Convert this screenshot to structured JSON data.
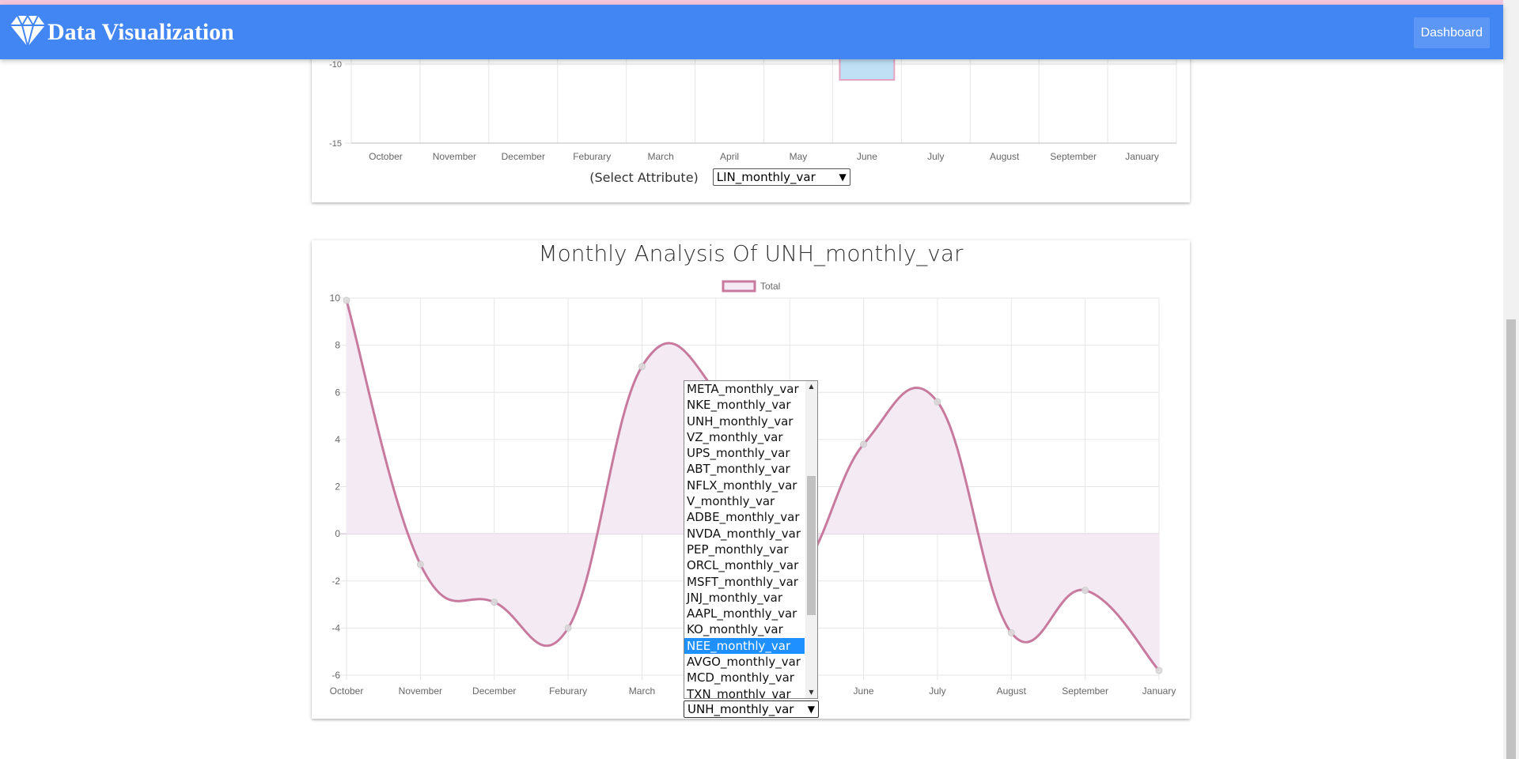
{
  "navbar": {
    "brand": "Data Visualization",
    "dashboard_label": "Dashboard",
    "color": "#4286f4"
  },
  "top_section": {
    "select_label": "(Select Attribute)",
    "selected_value": "LIN_monthly_var"
  },
  "bottom_section": {
    "title": "Monthly Analysis Of UNH_monthly_var",
    "selected_value": "UNH_monthly_var",
    "dropdown_options": [
      "META_monthly_var",
      "NKE_monthly_var",
      "UNH_monthly_var",
      "VZ_monthly_var",
      "UPS_monthly_var",
      "ABT_monthly_var",
      "NFLX_monthly_var",
      "V_monthly_var",
      "ADBE_monthly_var",
      "NVDA_monthly_var",
      "PEP_monthly_var",
      "ORCL_monthly_var",
      "MSFT_monthly_var",
      "JNJ_monthly_var",
      "AAPL_monthly_var",
      "KO_monthly_var",
      "NEE_monthly_var",
      "AVGO_monthly_var",
      "MCD_monthly_var",
      "TXN_monthly_var"
    ],
    "highlighted_option": "NEE_monthly_var"
  },
  "chart_data": [
    {
      "type": "bar",
      "partial": true,
      "categories": [
        "October",
        "November",
        "December",
        "Feburary",
        "March",
        "April",
        "May",
        "June",
        "July",
        "August",
        "September",
        "January"
      ],
      "visible_y_ticks": [
        -10,
        -15
      ],
      "bar_color": "#bfe0f5",
      "bar_border_color": "#e6a3c0",
      "visible_bar": {
        "category": "June",
        "value": -11
      }
    },
    {
      "type": "line",
      "title": "Monthly Analysis Of UNH_monthly_var",
      "categories": [
        "October",
        "November",
        "December",
        "Feburary",
        "March",
        "April",
        "May",
        "June",
        "July",
        "August",
        "September",
        "January"
      ],
      "series": [
        {
          "name": "Total",
          "values": [
            9.9,
            -1.3,
            -2.9,
            -4.0,
            7.1,
            6.0,
            -1.5,
            3.8,
            5.6,
            -4.2,
            -2.4,
            -5.8
          ]
        }
      ],
      "y_ticks": [
        10,
        8,
        6,
        4,
        2,
        0,
        -2,
        -4,
        -6
      ],
      "ylim": [
        -6,
        10
      ],
      "line_color": "#c87a9e",
      "fill_color": "#f3eaf3",
      "grid": true,
      "legend": "top-center",
      "smooth": true
    }
  ]
}
